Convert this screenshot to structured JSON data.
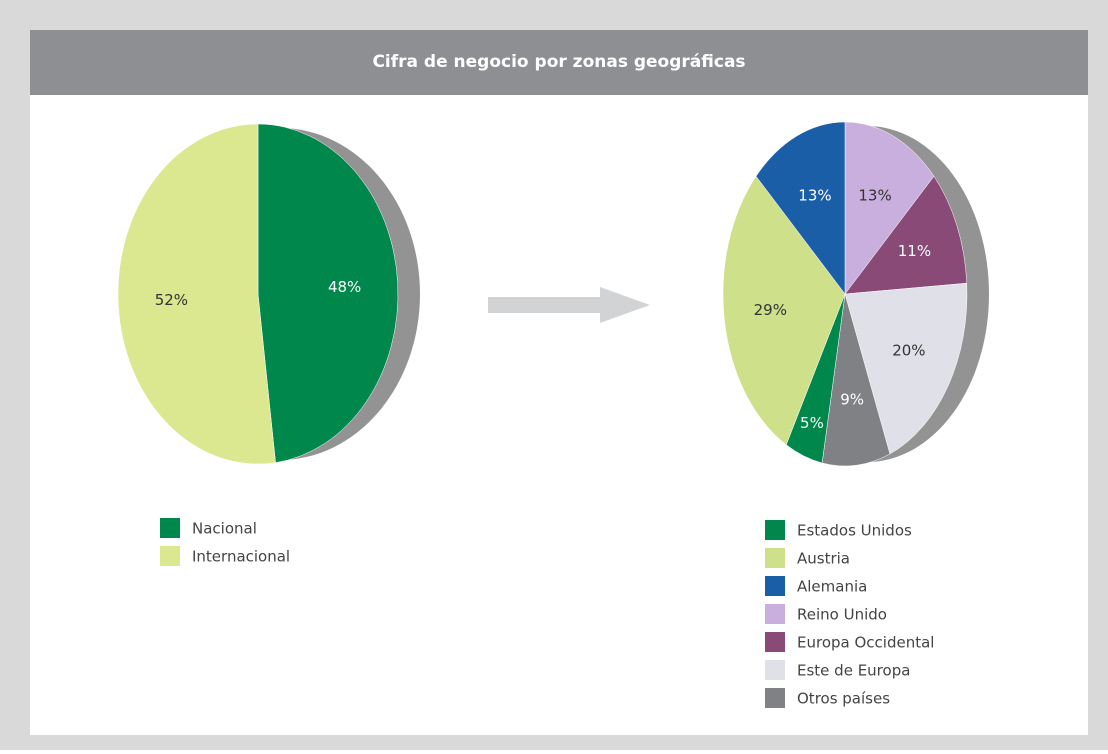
{
  "title": "Cifra de negocio por zonas geográficas",
  "chart_data": [
    {
      "type": "pie",
      "categories": [
        "Nacional",
        "Internacional"
      ],
      "values": [
        48,
        52
      ],
      "value_labels": [
        "48%",
        "52%"
      ],
      "colors": [
        "#00874b",
        "#dce88f"
      ]
    },
    {
      "type": "pie",
      "categories": [
        "Estados Unidos",
        "Austria",
        "Alemania",
        "Reino Unido",
        "Europa Occidental",
        "Este de Europa",
        "Otros países"
      ],
      "values": [
        5,
        29,
        13,
        13,
        11,
        20,
        9
      ],
      "value_labels": [
        "5%",
        "29%",
        "13%",
        "13%",
        "11%",
        "20%",
        "9%"
      ],
      "colors": [
        "#00874b",
        "#cfe08a",
        "#1b5ea8",
        "#c9afdd",
        "#8a4a78",
        "#e0e1e8",
        "#808185"
      ]
    }
  ]
}
